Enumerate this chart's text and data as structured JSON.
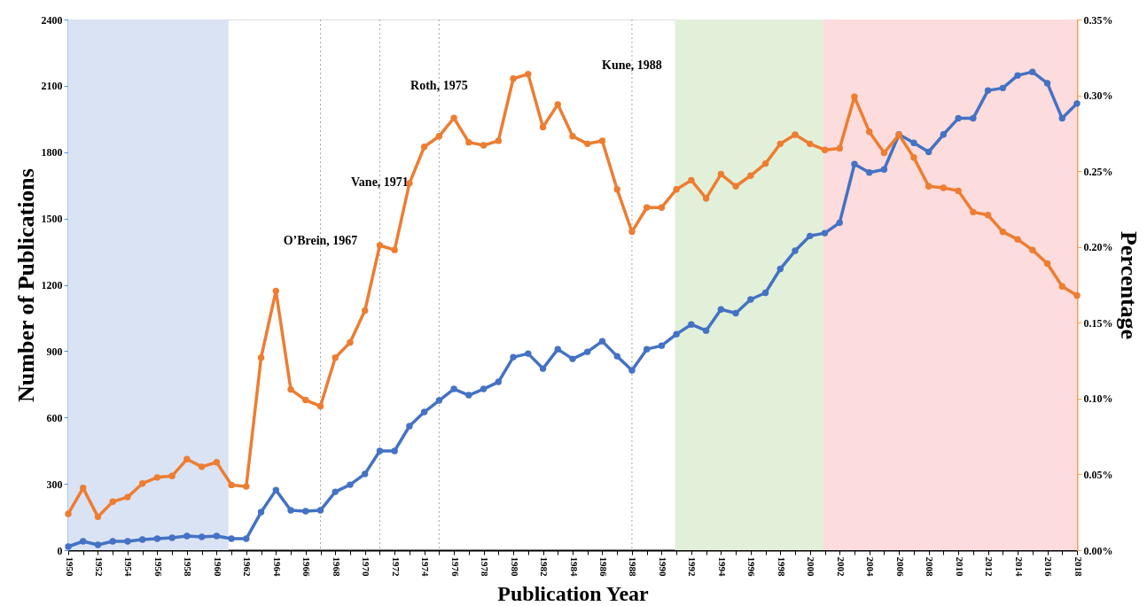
{
  "chart_data": {
    "type": "line",
    "xlabel": "Publication Year",
    "ylabel": "Number of Publications",
    "y2label": "Percentage",
    "x": [
      1950,
      1951,
      1952,
      1953,
      1954,
      1955,
      1956,
      1957,
      1958,
      1959,
      1960,
      1961,
      1962,
      1963,
      1964,
      1965,
      1966,
      1967,
      1968,
      1969,
      1970,
      1971,
      1972,
      1973,
      1974,
      1975,
      1976,
      1977,
      1978,
      1979,
      1980,
      1981,
      1982,
      1983,
      1984,
      1985,
      1986,
      1987,
      1988,
      1989,
      1990,
      1991,
      1992,
      1993,
      1994,
      1995,
      1996,
      1997,
      1998,
      1999,
      2000,
      2001,
      2002,
      2003,
      2004,
      2005,
      2006,
      2007,
      2008,
      2009,
      2010,
      2011,
      2012,
      2013,
      2014,
      2015,
      2016,
      2017,
      2018
    ],
    "series": [
      {
        "color": "#4472c4",
        "axis": "y",
        "values": [
          16,
          40,
          24,
          40,
          40,
          48,
          52,
          56,
          64,
          60,
          64,
          52,
          52,
          172,
          272,
          180,
          176,
          180,
          264,
          296,
          345,
          449,
          449,
          561,
          625,
          677,
          729,
          701,
          729,
          761,
          873,
          889,
          821,
          909,
          865,
          897,
          945,
          877,
          813,
          909,
          925,
          977,
          1021,
          993,
          1089,
          1072,
          1134,
          1164,
          1272,
          1354,
          1421,
          1434,
          1481,
          1746,
          1708,
          1722,
          1880,
          1842,
          1801,
          1880,
          1953,
          1953,
          2079,
          2090,
          2147,
          2163,
          2112,
          1953,
          2020
        ]
      },
      {
        "color": "#ed7d31",
        "axis": "y2",
        "values": [
          0.024,
          0.041,
          0.022,
          0.032,
          0.035,
          0.044,
          0.048,
          0.049,
          0.06,
          0.055,
          0.058,
          0.043,
          0.042,
          0.127,
          0.171,
          0.106,
          0.099,
          0.095,
          0.127,
          0.137,
          0.158,
          0.201,
          0.198,
          0.242,
          0.266,
          0.273,
          0.285,
          0.269,
          0.267,
          0.27,
          0.311,
          0.314,
          0.279,
          0.294,
          0.273,
          0.268,
          0.27,
          0.238,
          0.21,
          0.226,
          0.226,
          0.238,
          0.244,
          0.232,
          0.248,
          0.24,
          0.247,
          0.255,
          0.268,
          0.274,
          0.268,
          0.264,
          0.265,
          0.299,
          0.276,
          0.262,
          0.274,
          0.259,
          0.24,
          0.239,
          0.237,
          0.223,
          0.221,
          0.21,
          0.205,
          0.198,
          0.189,
          0.174,
          0.168
        ]
      }
    ],
    "xlim": [
      1950,
      2018
    ],
    "xticks": [
      1950,
      {
        "value": 1951,
        "label": null
      },
      1952,
      {
        "value": 1953,
        "label": null
      },
      1954,
      {
        "value": 1955,
        "label": null
      },
      1956,
      {
        "value": 1957,
        "label": null
      },
      1958,
      {
        "value": 1959,
        "label": null
      },
      1960,
      {
        "value": 1961,
        "label": null
      },
      1962,
      {
        "value": 1963,
        "label": null
      },
      1964,
      {
        "value": 1965,
        "label": null
      },
      1966,
      {
        "value": 1967,
        "label": null
      },
      1968,
      {
        "value": 1969,
        "label": null
      },
      1970,
      {
        "value": 1971,
        "label": null
      },
      1972,
      {
        "value": 1973,
        "label": null
      },
      1974,
      {
        "value": 1975,
        "label": null
      },
      1976,
      {
        "value": 1977,
        "label": null
      },
      1978,
      {
        "value": 1979,
        "label": null
      },
      1980,
      {
        "value": 1981,
        "label": null
      },
      1982,
      {
        "value": 1983,
        "label": null
      },
      1984,
      {
        "value": 1985,
        "label": null
      },
      1986,
      {
        "value": 1987,
        "label": null
      },
      1988,
      {
        "value": 1989,
        "label": null
      },
      1990,
      {
        "value": 1991,
        "label": null
      },
      1992,
      {
        "value": 1993,
        "label": null
      },
      1994,
      {
        "value": 1995,
        "label": null
      },
      1996,
      {
        "value": 1997,
        "label": null
      },
      1998,
      {
        "value": 1999,
        "label": null
      },
      2000,
      {
        "value": 2001,
        "label": null
      },
      2002,
      {
        "value": 2003,
        "label": null
      },
      2004,
      {
        "value": 2005,
        "label": null
      },
      2006,
      {
        "value": 2007,
        "label": null
      },
      2008,
      {
        "value": 2009,
        "label": null
      },
      2010,
      {
        "value": 2011,
        "label": null
      },
      2012,
      {
        "value": 2013,
        "label": null
      },
      2014,
      {
        "value": 2015,
        "label": null
      },
      2016,
      {
        "value": 2017,
        "label": null
      },
      2018
    ],
    "ylim": [
      0,
      2400
    ],
    "yticks": [
      0,
      300,
      600,
      900,
      1200,
      1500,
      1800,
      2100,
      2400
    ],
    "y2lim": [
      0,
      0.35
    ],
    "y2ticks": [
      {
        "value": 0,
        "label": "0.00%"
      },
      {
        "value": 0.05,
        "label": "0.05%"
      },
      {
        "value": 0.1,
        "label": "0.10%"
      },
      {
        "value": 0.15,
        "label": "0.15%"
      },
      {
        "value": 0.2,
        "label": "0.20%"
      },
      {
        "value": 0.25,
        "label": "0.25%"
      },
      {
        "value": 0.3,
        "label": "0.30%"
      },
      {
        "value": 0.35,
        "label": "0.35%"
      }
    ],
    "bands": [
      {
        "axis": "x",
        "from": 1950,
        "to": 1960.8,
        "color": "#dae3f3"
      },
      {
        "axis": "x",
        "from": 1990.9,
        "to": 2000.9,
        "color": "#e2f0d9"
      },
      {
        "axis": "x",
        "from": 2000.9,
        "to": 2018,
        "color": "#fcdcdc"
      }
    ],
    "ref_lines": [
      {
        "axis": "x",
        "value": 1967,
        "label": "O’Brein, 1967",
        "color": "#a6a6a6",
        "line_style": "dotted"
      },
      {
        "axis": "x",
        "value": 1971,
        "label": "Vane, 1971",
        "color": "#a6a6a6",
        "line_style": "dotted"
      },
      {
        "axis": "x",
        "value": 1975,
        "label": "Roth, 1975",
        "color": "#a6a6a6",
        "line_style": "dotted"
      },
      {
        "axis": "x",
        "value": 1988,
        "label": "Kune, 1988",
        "color": "#a6a6a6",
        "line_style": "dotted"
      }
    ],
    "marker": "circle",
    "line_style": "solid",
    "grid": false,
    "legend": false
  }
}
